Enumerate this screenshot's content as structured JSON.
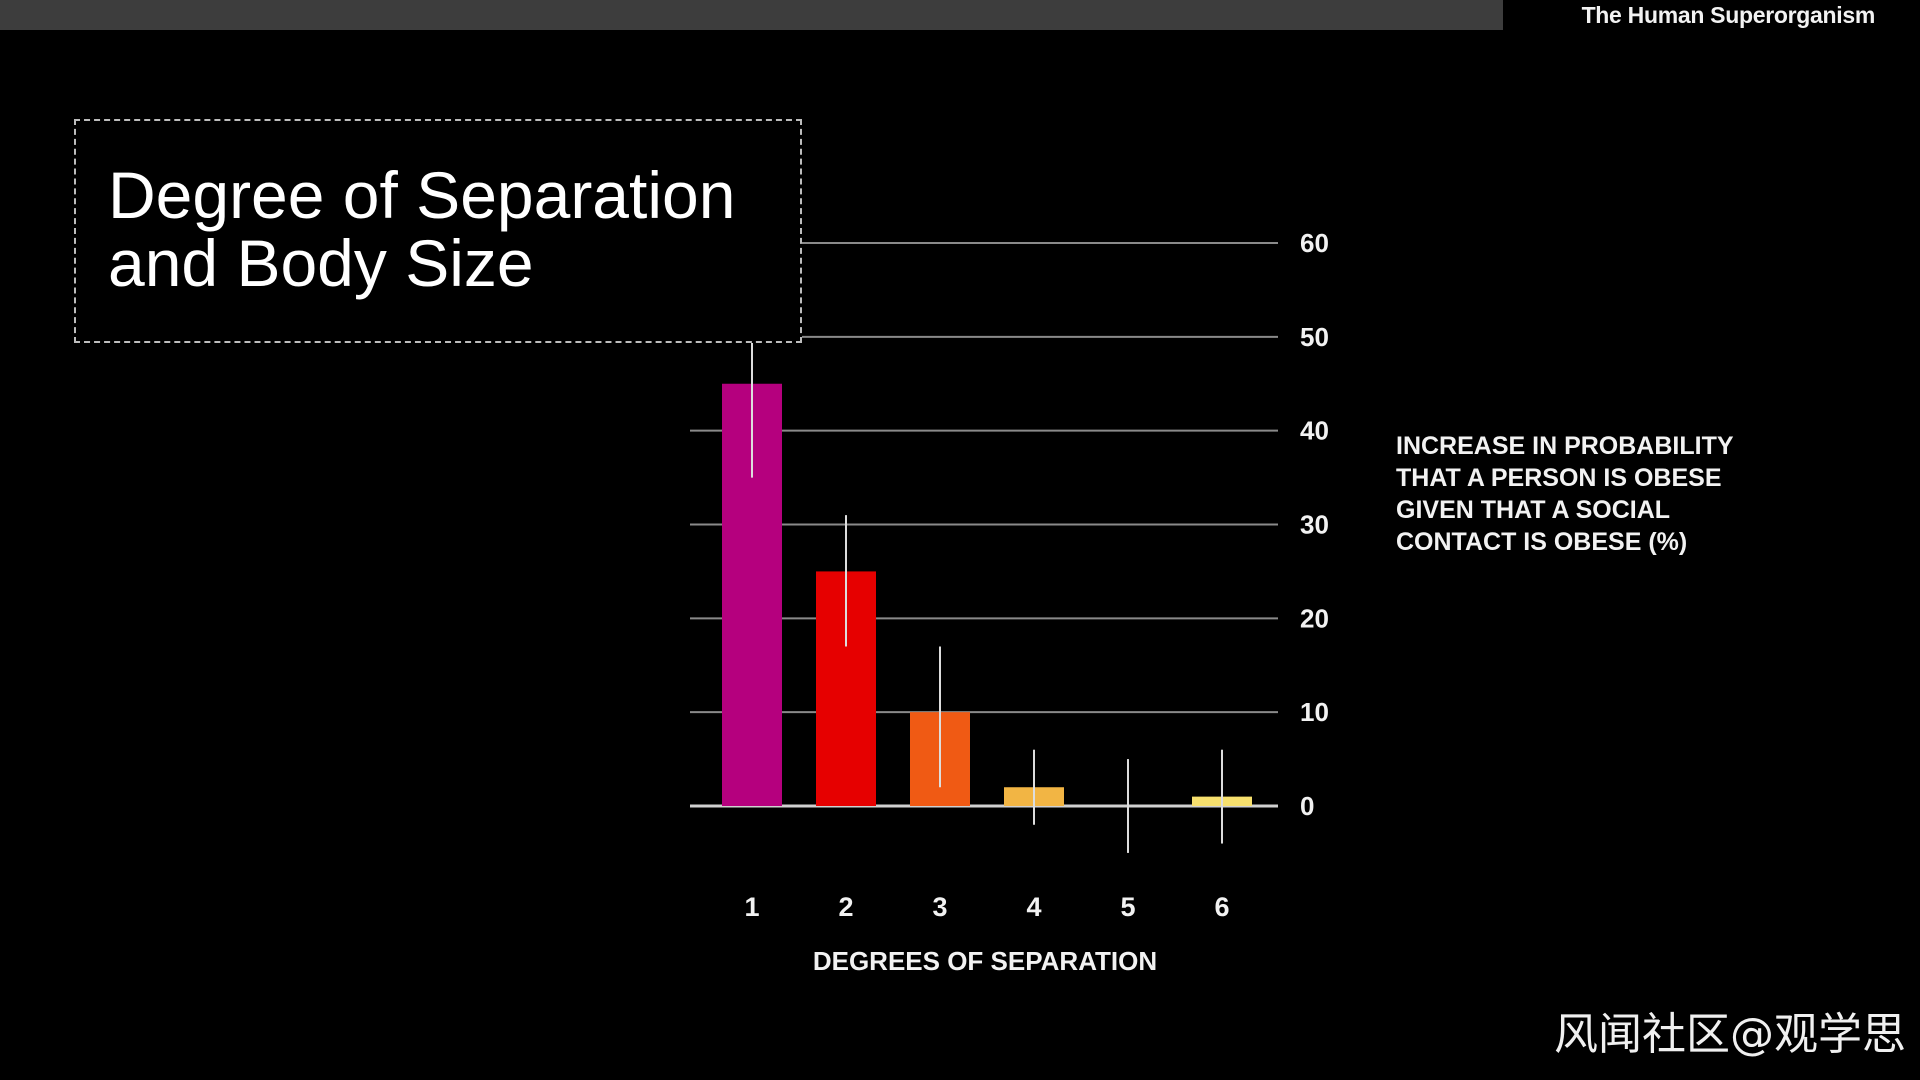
{
  "header": {
    "brand": "The Human Superorganism"
  },
  "watermark": "风闻社区@观学思",
  "chart_data": {
    "type": "bar",
    "title": "Degree of Separation and Body Size",
    "xlabel": "DEGREES OF SEPARATION",
    "ylabel": "INCREASE IN PROBABILITY THAT A PERSON IS OBESE GIVEN THAT A SOCIAL CONTACT IS OBESE (%)",
    "categories": [
      "1",
      "2",
      "3",
      "4",
      "5",
      "6"
    ],
    "values": [
      45,
      25,
      10,
      2,
      0,
      1
    ],
    "error_low": [
      35,
      17,
      2,
      -2,
      -5,
      -4
    ],
    "error_high": [
      57,
      31,
      17,
      6,
      5,
      6
    ],
    "bar_colors": [
      "#b5007e",
      "#e60000",
      "#f05a14",
      "#f2b544",
      "#f5d06a",
      "#f7e06e"
    ],
    "ylim": [
      0,
      60
    ],
    "yticks": [
      0,
      10,
      20,
      30,
      40,
      50,
      60
    ],
    "grid": true,
    "y_axis_side": "right"
  }
}
